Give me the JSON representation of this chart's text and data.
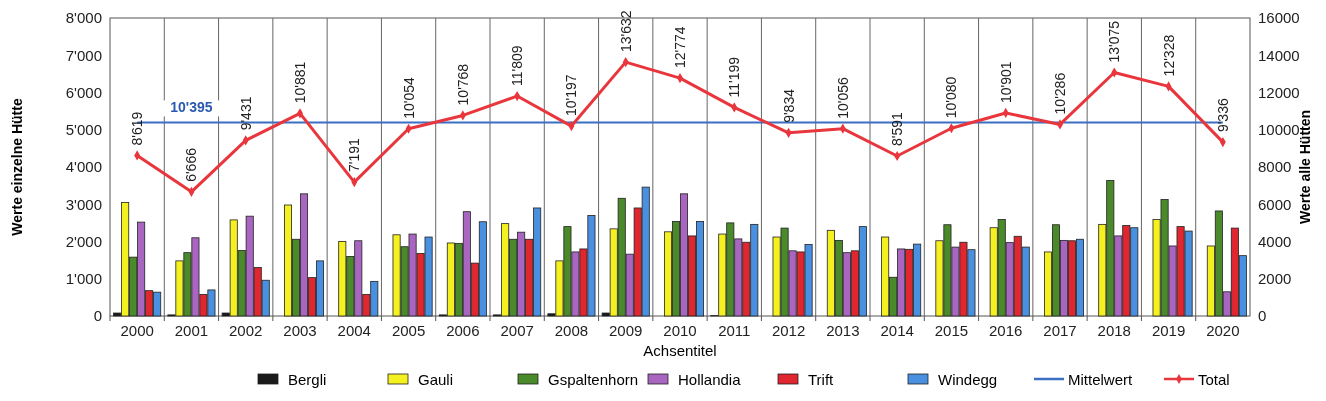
{
  "chart_data": {
    "type": "bar",
    "xlabel": "Achsentitel",
    "ylabel": "Werte einzelne Hütte",
    "y2label": "Werte alle Hütten",
    "categories": [
      "2000",
      "2001",
      "2002",
      "2003",
      "2004",
      "2005",
      "2006",
      "2007",
      "2008",
      "2009",
      "2010",
      "2011",
      "2012",
      "2013",
      "2014",
      "2015",
      "2016",
      "2017",
      "2018",
      "2019",
      "2020"
    ],
    "ylim": [
      0,
      8000
    ],
    "yticks": [
      0,
      {
        "value": 1000,
        "label": "1'000"
      },
      {
        "value": 2000,
        "label": "2'000"
      },
      {
        "value": 3000,
        "label": "3'000"
      },
      {
        "value": 4000,
        "label": "4'000"
      },
      {
        "value": 5000,
        "label": "5'000"
      },
      {
        "value": 6000,
        "label": "6'000"
      },
      {
        "value": 7000,
        "label": "7'000"
      },
      {
        "value": 8000,
        "label": "8'000"
      }
    ],
    "y2lim": [
      0,
      16000
    ],
    "y2ticks": [
      0,
      2000,
      4000,
      6000,
      8000,
      10000,
      12000,
      14000,
      16000
    ],
    "grid": "x",
    "legend": "bottom",
    "series": [
      {
        "name": "Bergli",
        "color": "#1a1a1a",
        "values": [
          80,
          30,
          80,
          0,
          0,
          0,
          30,
          30,
          60,
          80,
          0,
          10,
          0,
          0,
          0,
          0,
          0,
          0,
          0,
          0,
          0
        ]
      },
      {
        "name": "Gauli",
        "color": "#f5f020",
        "values": [
          3050,
          1480,
          2580,
          2980,
          2000,
          2180,
          1960,
          2480,
          1480,
          2340,
          2260,
          2200,
          2120,
          2300,
          2120,
          2020,
          2370,
          1720,
          2460,
          2590,
          1880
        ]
      },
      {
        "name": "Gspaltenhorn",
        "color": "#4a8a2a",
        "values": [
          1580,
          1700,
          1760,
          2060,
          1600,
          1860,
          1950,
          2060,
          2400,
          3160,
          2540,
          2500,
          2360,
          2030,
          1040,
          2450,
          2590,
          2450,
          3640,
          3130,
          2820
        ]
      },
      {
        "name": "Hollandia",
        "color": "#a866c0",
        "values": [
          2520,
          2100,
          2680,
          3280,
          2020,
          2200,
          2800,
          2250,
          1720,
          1660,
          3280,
          2070,
          1750,
          1700,
          1800,
          1850,
          1970,
          2030,
          2150,
          1880,
          650
        ]
      },
      {
        "name": "Trift",
        "color": "#e0262e",
        "values": [
          680,
          580,
          1300,
          1030,
          580,
          1680,
          1420,
          2060,
          1800,
          2900,
          2150,
          1980,
          1720,
          1750,
          1790,
          1980,
          2140,
          2020,
          2430,
          2400,
          2360
        ]
      },
      {
        "name": "Windegg",
        "color": "#4a90e0",
        "values": [
          640,
          700,
          960,
          1480,
          930,
          2120,
          2530,
          2900,
          2700,
          3460,
          2540,
          2460,
          1920,
          2400,
          1930,
          1780,
          1850,
          2060,
          2370,
          2280,
          1620
        ]
      },
      {
        "name": "Mittelwert",
        "type": "line",
        "axis": "y2",
        "color": "#3a6fc4",
        "marker": "none",
        "values": [
          10395,
          10395,
          10395,
          10395,
          10395,
          10395,
          10395,
          10395,
          10395,
          10395,
          10395,
          10395,
          10395,
          10395,
          10395,
          10395,
          10395,
          10395,
          10395,
          10395,
          10395
        ],
        "value_labels": [
          null,
          "10'395",
          null,
          null,
          null,
          null,
          null,
          null,
          null,
          null,
          null,
          null,
          null,
          null,
          null,
          null,
          null,
          null,
          null,
          null,
          null
        ]
      },
      {
        "name": "Total",
        "type": "line",
        "axis": "y2",
        "color": "#e8363c",
        "marker": "diamond",
        "values": [
          8619,
          6666,
          9431,
          10881,
          7191,
          10054,
          10768,
          11809,
          10197,
          13632,
          12774,
          11199,
          9834,
          10056,
          8591,
          10080,
          10901,
          10286,
          13075,
          12328,
          9336
        ],
        "value_labels": [
          "8'619",
          "6'666",
          "9'431",
          "10'881",
          "7'191",
          "10'054",
          "10'768",
          "11'809",
          "10'197",
          "13'632",
          "12'774",
          "11'199",
          "9'834",
          "10'056",
          "8'591",
          "10'080",
          "10'901",
          "10'286",
          "13'075",
          "12'328",
          "9'336"
        ]
      }
    ]
  }
}
